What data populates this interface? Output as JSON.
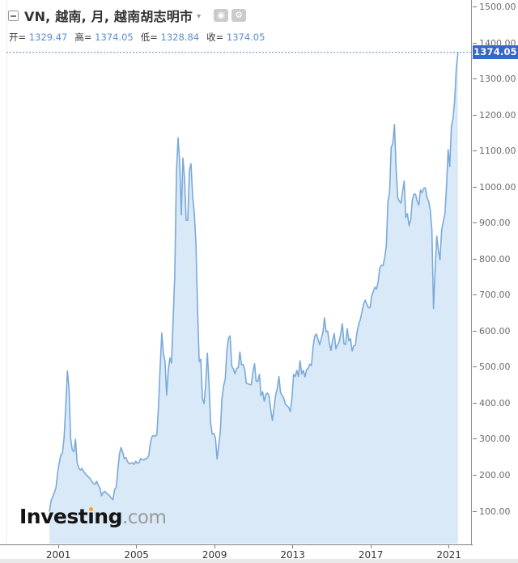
{
  "header": {
    "title": "VN, 越南, 月, 越南胡志明市",
    "caret": "▾",
    "icon_buttons": {
      "target_glyph": "◉",
      "gear_glyph": "⚙"
    },
    "ohlc": [
      {
        "label": "开=",
        "value": "1329.47"
      },
      {
        "label": "高=",
        "value": "1374.05"
      },
      {
        "label": "低=",
        "value": "1328.84"
      },
      {
        "label": "收=",
        "value": "1374.05"
      }
    ]
  },
  "price_scale": {
    "values": [
      1500,
      1400,
      1300,
      1200,
      1100,
      1000,
      900,
      800,
      700,
      600,
      500,
      400,
      300,
      200,
      100
    ],
    "last_price_label": "1374.05",
    "badge_color": "#3566cb"
  },
  "time_scale": {
    "years": [
      2001,
      2005,
      2009,
      2013,
      2017,
      2021
    ]
  },
  "watermark": {
    "text": "Investing.com",
    "parts": [
      "Invest",
      "ı",
      "ng",
      ".com"
    ],
    "dot_color": "#f7a21b"
  },
  "chart_data": {
    "type": "area",
    "title": "VN, 越南, 月, 越南胡志明市",
    "xlabel": "",
    "ylabel": "",
    "x_range": [
      2000.5,
      2021.5
    ],
    "ylim": [
      100,
      1500
    ],
    "grid": false,
    "legend": "none",
    "last_value": 1374.05,
    "colors": {
      "line": "#7aaad9",
      "fill": "#d9e9f7",
      "last_price_line": "#5b86cf"
    },
    "series": [
      {
        "name": "VN",
        "interval": "monthly",
        "data": [
          {
            "year": 2000,
            "start_month": 7,
            "values": [
              100,
              130,
              140,
              152,
              166,
              207
            ]
          },
          {
            "year": 2001,
            "start_month": 1,
            "values": [
              235,
              256,
              262,
              305,
              390,
              490,
              440,
              301,
              270,
              266,
              300,
              235
            ]
          },
          {
            "year": 2002,
            "start_month": 1,
            "values": [
              220,
              214,
              219,
              210,
              204,
              199,
              195,
              190,
              183,
              177,
              175,
              183
            ]
          },
          {
            "year": 2003,
            "start_month": 1,
            "values": [
              172,
              164,
              143,
              152,
              155,
              150,
              147,
              142,
              136,
              132,
              160,
              167
            ]
          },
          {
            "year": 2004,
            "start_month": 1,
            "values": [
              215,
              260,
              277,
              264,
              246,
              249,
              238,
              232,
              233,
              235,
              230,
              239
            ]
          },
          {
            "year": 2005,
            "start_month": 1,
            "values": [
              233,
              235,
              246,
              244,
              242,
              246,
              247,
              255,
              289,
              307,
              311,
              308
            ]
          },
          {
            "year": 2006,
            "start_month": 1,
            "values": [
              312,
              390,
              503,
              595,
              538,
              515,
              422,
              491,
              526,
              511,
              633,
              752
            ]
          },
          {
            "year": 2007,
            "start_month": 1,
            "values": [
              1041,
              1137,
              1071,
              923,
              1081,
              1025,
              908,
              908,
              1046,
              1065,
              972,
              927
            ]
          },
          {
            "year": 2008,
            "start_month": 1,
            "values": [
              844,
              663,
              516,
              522,
              414,
              399,
              451,
              539,
              456,
              347,
              314,
              316
            ]
          },
          {
            "year": 2009,
            "start_month": 1,
            "values": [
              303,
              245,
              281,
              321,
              412,
              448,
              467,
              546,
              580,
              587,
              504,
              495
            ]
          },
          {
            "year": 2010,
            "start_month": 1,
            "values": [
              482,
              496,
              499,
              542,
              507,
              507,
              493,
              455,
              454,
              452,
              451,
              485
            ]
          },
          {
            "year": 2011,
            "start_month": 1,
            "values": [
              510,
              461,
              461,
              480,
              421,
              432,
              405,
              425,
              428,
              420,
              380,
              352
            ]
          },
          {
            "year": 2012,
            "start_month": 1,
            "values": [
              388,
              423,
              441,
              474,
              429,
              422,
              414,
              396,
              393,
              388,
              377,
              414
            ]
          },
          {
            "year": 2013,
            "start_month": 1,
            "values": [
              480,
              474,
              491,
              474,
              518,
              481,
              491,
              473,
              493,
              497,
              508,
              505
            ]
          },
          {
            "year": 2014,
            "start_month": 1,
            "values": [
              556,
              586,
              592,
              578,
              562,
              578,
              596,
              637,
              599,
              600,
              567,
              546
            ]
          },
          {
            "year": 2015,
            "start_month": 1,
            "values": [
              576,
              593,
              551,
              562,
              570,
              593,
              621,
              565,
              563,
              607,
              573,
              579
            ]
          },
          {
            "year": 2016,
            "start_month": 1,
            "values": [
              545,
              559,
              561,
              598,
              618,
              632,
              652,
              675,
              686,
              675,
              665,
              665
            ]
          },
          {
            "year": 2017,
            "start_month": 1,
            "values": [
              698,
              710,
              722,
              717,
              737,
              776,
              783,
              782,
              804,
              837,
              960,
              984
            ]
          },
          {
            "year": 2018,
            "start_month": 1,
            "values": [
              1110,
              1121,
              1174,
              1050,
              971,
              961,
              956,
              989,
              1017,
              915,
              926,
              893
            ]
          },
          {
            "year": 2019,
            "start_month": 1,
            "values": [
              910,
              965,
              981,
              979,
              960,
              950,
              992,
              984,
              997,
              998,
              971,
              961
            ]
          },
          {
            "year": 2020,
            "start_month": 1,
            "values": [
              936,
              882,
              663,
              769,
              864,
              825,
              798,
              881,
              905,
              925,
              1003,
              1104
            ]
          },
          {
            "year": 2021,
            "start_month": 1,
            "values": [
              1057,
              1168,
              1191,
              1239,
              1328,
              1374.05
            ]
          }
        ]
      }
    ]
  }
}
